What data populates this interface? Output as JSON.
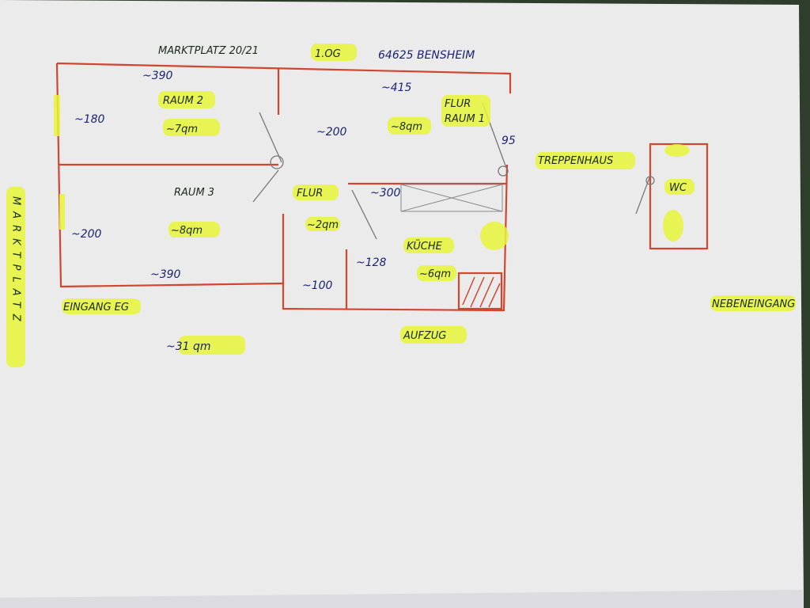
{
  "header": {
    "address": "MARKTPLATZ 20/21",
    "floor": "1.OG",
    "city": "64625 BENSHEIM"
  },
  "street_side": "MARKTPLATZ",
  "rooms": {
    "raum2": {
      "name": "RAUM 2",
      "area": "~7qm",
      "width": "~390",
      "depth": "~180"
    },
    "raum1": {
      "name_line1": "FLUR",
      "name_line2": "RAUM 1",
      "area": "~8qm",
      "width": "~415",
      "depth": "~200",
      "door": "95"
    },
    "raum3": {
      "name": "RAUM 3",
      "area": "~8qm",
      "width": "~390",
      "depth": "~200"
    },
    "flur": {
      "name": "FLUR",
      "area": "~2qm",
      "width": "~100"
    },
    "kueche": {
      "name": "KÜCHE",
      "area": "~6qm",
      "width": "~300",
      "depth": "~128"
    },
    "wc": {
      "name": "WC"
    }
  },
  "labels": {
    "entrance": "EINGANG EG",
    "total_area": "~31 qm",
    "elevator": "AUFZUG",
    "stairwell": "TREPPENHAUS",
    "side_entrance": "NEBENEINGANG"
  },
  "colors": {
    "wall": "#d2452e",
    "highlight": "#e8f53a",
    "ink": "#1b2470",
    "paper": "#ecebec"
  }
}
